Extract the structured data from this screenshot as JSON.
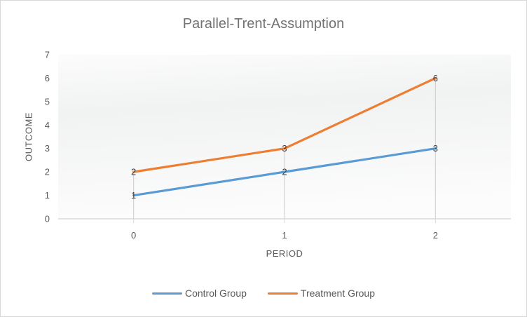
{
  "chart_data": {
    "type": "line",
    "title": "Parallel-Trent-Assumption",
    "xlabel": "PERIOD",
    "ylabel": "OUTCOME",
    "categories": [
      "0",
      "1",
      "2"
    ],
    "x": [
      0,
      1,
      2
    ],
    "series": [
      {
        "name": "Control Group",
        "values": [
          1,
          2,
          3
        ],
        "color": "#5B9BD5"
      },
      {
        "name": "Treatment Group",
        "values": [
          2,
          3,
          6
        ],
        "color": "#ED7D31"
      }
    ],
    "ylim": [
      0,
      7
    ],
    "y_ticks": [
      0,
      1,
      2,
      3,
      4,
      5,
      6,
      7
    ],
    "data_labels": true,
    "drop_lines": true,
    "grid": "none",
    "legend_position": "bottom",
    "colors": {
      "title_text": "#737373",
      "axis_text": "#595959",
      "data_label_text": "#404040",
      "axis_line": "#d9d9d9",
      "drop_line": "#cbcbcb",
      "chart_border": "#d8d8d8",
      "plot_bg_light": "#fcfcfc",
      "plot_bg_shade": "#f1f2f2"
    }
  }
}
